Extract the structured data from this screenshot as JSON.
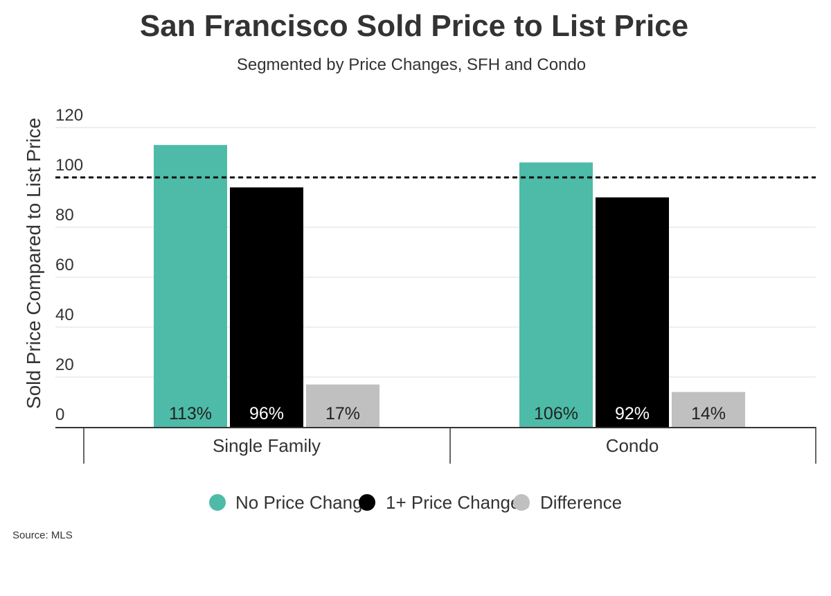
{
  "chart_data": {
    "type": "bar",
    "title": "San Francisco Sold Price to List Price",
    "subtitle": "Segmented by Price Changes, SFH and Condo",
    "xlabel": "",
    "ylabel": "Sold Price Compared to List Price",
    "ylim": [
      0,
      120
    ],
    "yticks": [
      "0",
      "20",
      "40",
      "60",
      "80",
      "100",
      "120"
    ],
    "grid": true,
    "reference_line": {
      "value": 100,
      "style": "dashed"
    },
    "categories": [
      "Single Family",
      "Condo"
    ],
    "series": [
      {
        "name": "No Price Change",
        "color": "#4dbba7",
        "values": [
          113,
          106
        ],
        "labels": [
          "113%",
          "106%"
        ],
        "label_color": "#222222"
      },
      {
        "name": "1+ Price Changes",
        "color": "#000000",
        "values": [
          96,
          92
        ],
        "labels": [
          "96%",
          "92%"
        ],
        "label_color": "#ffffff"
      },
      {
        "name": "Difference",
        "color": "#c0c0c0",
        "values": [
          17,
          14
        ],
        "labels": [
          "17%",
          "14%"
        ],
        "label_color": "#222222"
      }
    ],
    "legend_position": "bottom",
    "source": "Source:  MLS"
  }
}
